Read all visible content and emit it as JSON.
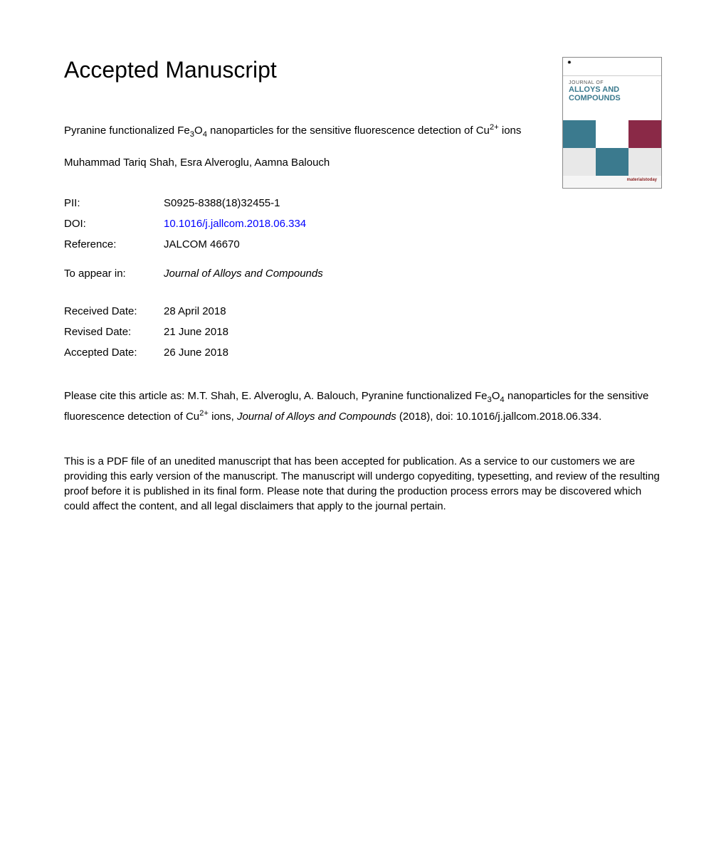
{
  "heading": "Accepted Manuscript",
  "article": {
    "title_part1": "Pyranine functionalized Fe",
    "title_sub1": "3",
    "title_part2": "O",
    "title_sub2": "4",
    "title_part3": " nanoparticles for the sensitive fluorescence detection of Cu",
    "title_sup1": "2+",
    "title_part4": " ions"
  },
  "authors": "Muhammad Tariq Shah, Esra Alveroglu, Aamna Balouch",
  "meta": {
    "pii_label": "PII:",
    "pii_value": "S0925-8388(18)32455-1",
    "doi_label": "DOI:",
    "doi_value": "10.1016/j.jallcom.2018.06.334",
    "ref_label": "Reference:",
    "ref_value": "JALCOM 46670"
  },
  "appear": {
    "label": "To appear in:",
    "value": "Journal of Alloys and Compounds"
  },
  "dates": {
    "received_label": "Received Date:",
    "received_value": "28 April 2018",
    "revised_label": "Revised Date:",
    "revised_value": "21 June 2018",
    "accepted_label": "Accepted Date:",
    "accepted_value": "26 June 2018"
  },
  "citation": {
    "part1": "Please cite this article as: M.T. Shah, E. Alveroglu, A. Balouch, Pyranine functionalized Fe",
    "sub1": "3",
    "part2": "O",
    "sub2": "4",
    "part3": " nanoparticles for the sensitive fluorescence detection of Cu",
    "sup1": "2+",
    "part4": " ions, ",
    "journal": "Journal of Alloys and Compounds",
    "part5": " (2018), doi: 10.1016/j.jallcom.2018.06.334."
  },
  "disclaimer": "This is a PDF file of an unedited manuscript that has been accepted for publication. As a service to our customers we are providing this early version of the manuscript. The manuscript will undergo copyediting, typesetting, and review of the resulting proof before it is published in its final form. Please note that during the production process errors may be discovered which could affect the content, and all legal disclaimers that apply to the journal pertain.",
  "cover": {
    "journal_of": "JOURNAL OF",
    "name1": "ALLOYS AND",
    "name2": "COMPOUNDS",
    "footer": "materialstoday",
    "colors": {
      "teal": "#3b7a8e",
      "maroon": "#8a2947",
      "light": "#e8e8e8",
      "white": "#ffffff"
    }
  }
}
